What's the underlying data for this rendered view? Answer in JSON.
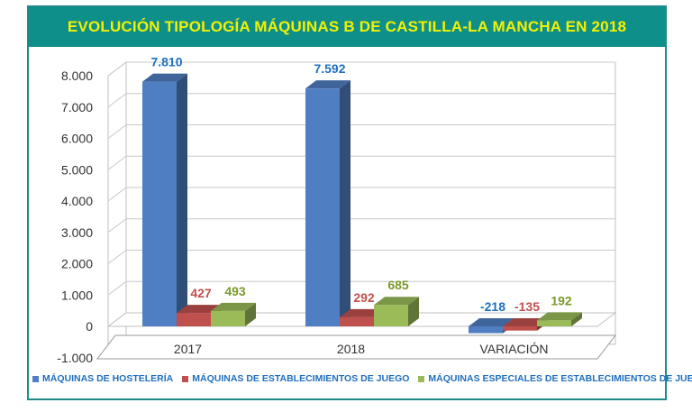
{
  "chart_data": {
    "type": "bar",
    "title": "EVOLUCIÓN TIPOLOGÍA MÁQUINAS B DE CASTILLA-LA MANCHA EN 2018",
    "categories": [
      "2017",
      "2018",
      "VARIACIÓN"
    ],
    "series": [
      {
        "name": "MÁQUINAS DE HOSTELERÍA",
        "values": [
          7810,
          7592,
          -218
        ],
        "labels": [
          "7.810",
          "7.592",
          "-218"
        ],
        "color": "#4f7ec2"
      },
      {
        "name": "MÁQUINAS DE ESTABLECIMIENTOS DE JUEGO",
        "values": [
          427,
          292,
          -135
        ],
        "labels": [
          "427",
          "292",
          "-135"
        ],
        "color": "#c0504d"
      },
      {
        "name": "MÁQUINAS ESPECIALES DE ESTABLECIMIENTOS DE JUEGO",
        "values": [
          493,
          685,
          192
        ],
        "labels": [
          "493",
          "685",
          "192"
        ],
        "color": "#9bbb59"
      }
    ],
    "yticks": [
      "-1.000",
      "0",
      "1.000",
      "2.000",
      "3.000",
      "4.000",
      "5.000",
      "6.000",
      "7.000",
      "8.000"
    ],
    "ytick_values": [
      -1000,
      0,
      1000,
      2000,
      3000,
      4000,
      5000,
      6000,
      7000,
      8000
    ],
    "ylim": [
      -1000,
      8000
    ],
    "grid": true,
    "legend": "bottom",
    "label_colors": [
      "#1f6fbf",
      "#c0504d",
      "#7a9a2a"
    ]
  }
}
